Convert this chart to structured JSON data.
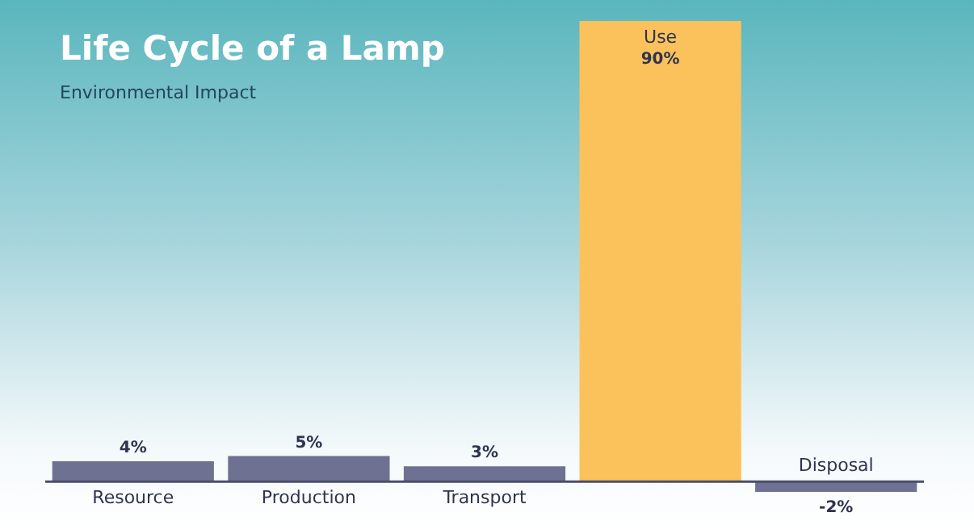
{
  "chart_data": {
    "type": "bar",
    "title": "Life Cycle of a Lamp",
    "subtitle": "Environmental Impact",
    "categories": [
      "Resource",
      "Production",
      "Transport",
      "Use",
      "Disposal"
    ],
    "values": [
      4,
      5,
      3,
      90,
      -2
    ],
    "colors": [
      "#6e7191",
      "#6e7191",
      "#6e7191",
      "#fbc25c",
      "#6e7191"
    ],
    "value_labels": [
      "4%",
      "5%",
      "3%",
      "90%",
      "-2%"
    ],
    "ylim": [
      -2,
      90
    ]
  }
}
